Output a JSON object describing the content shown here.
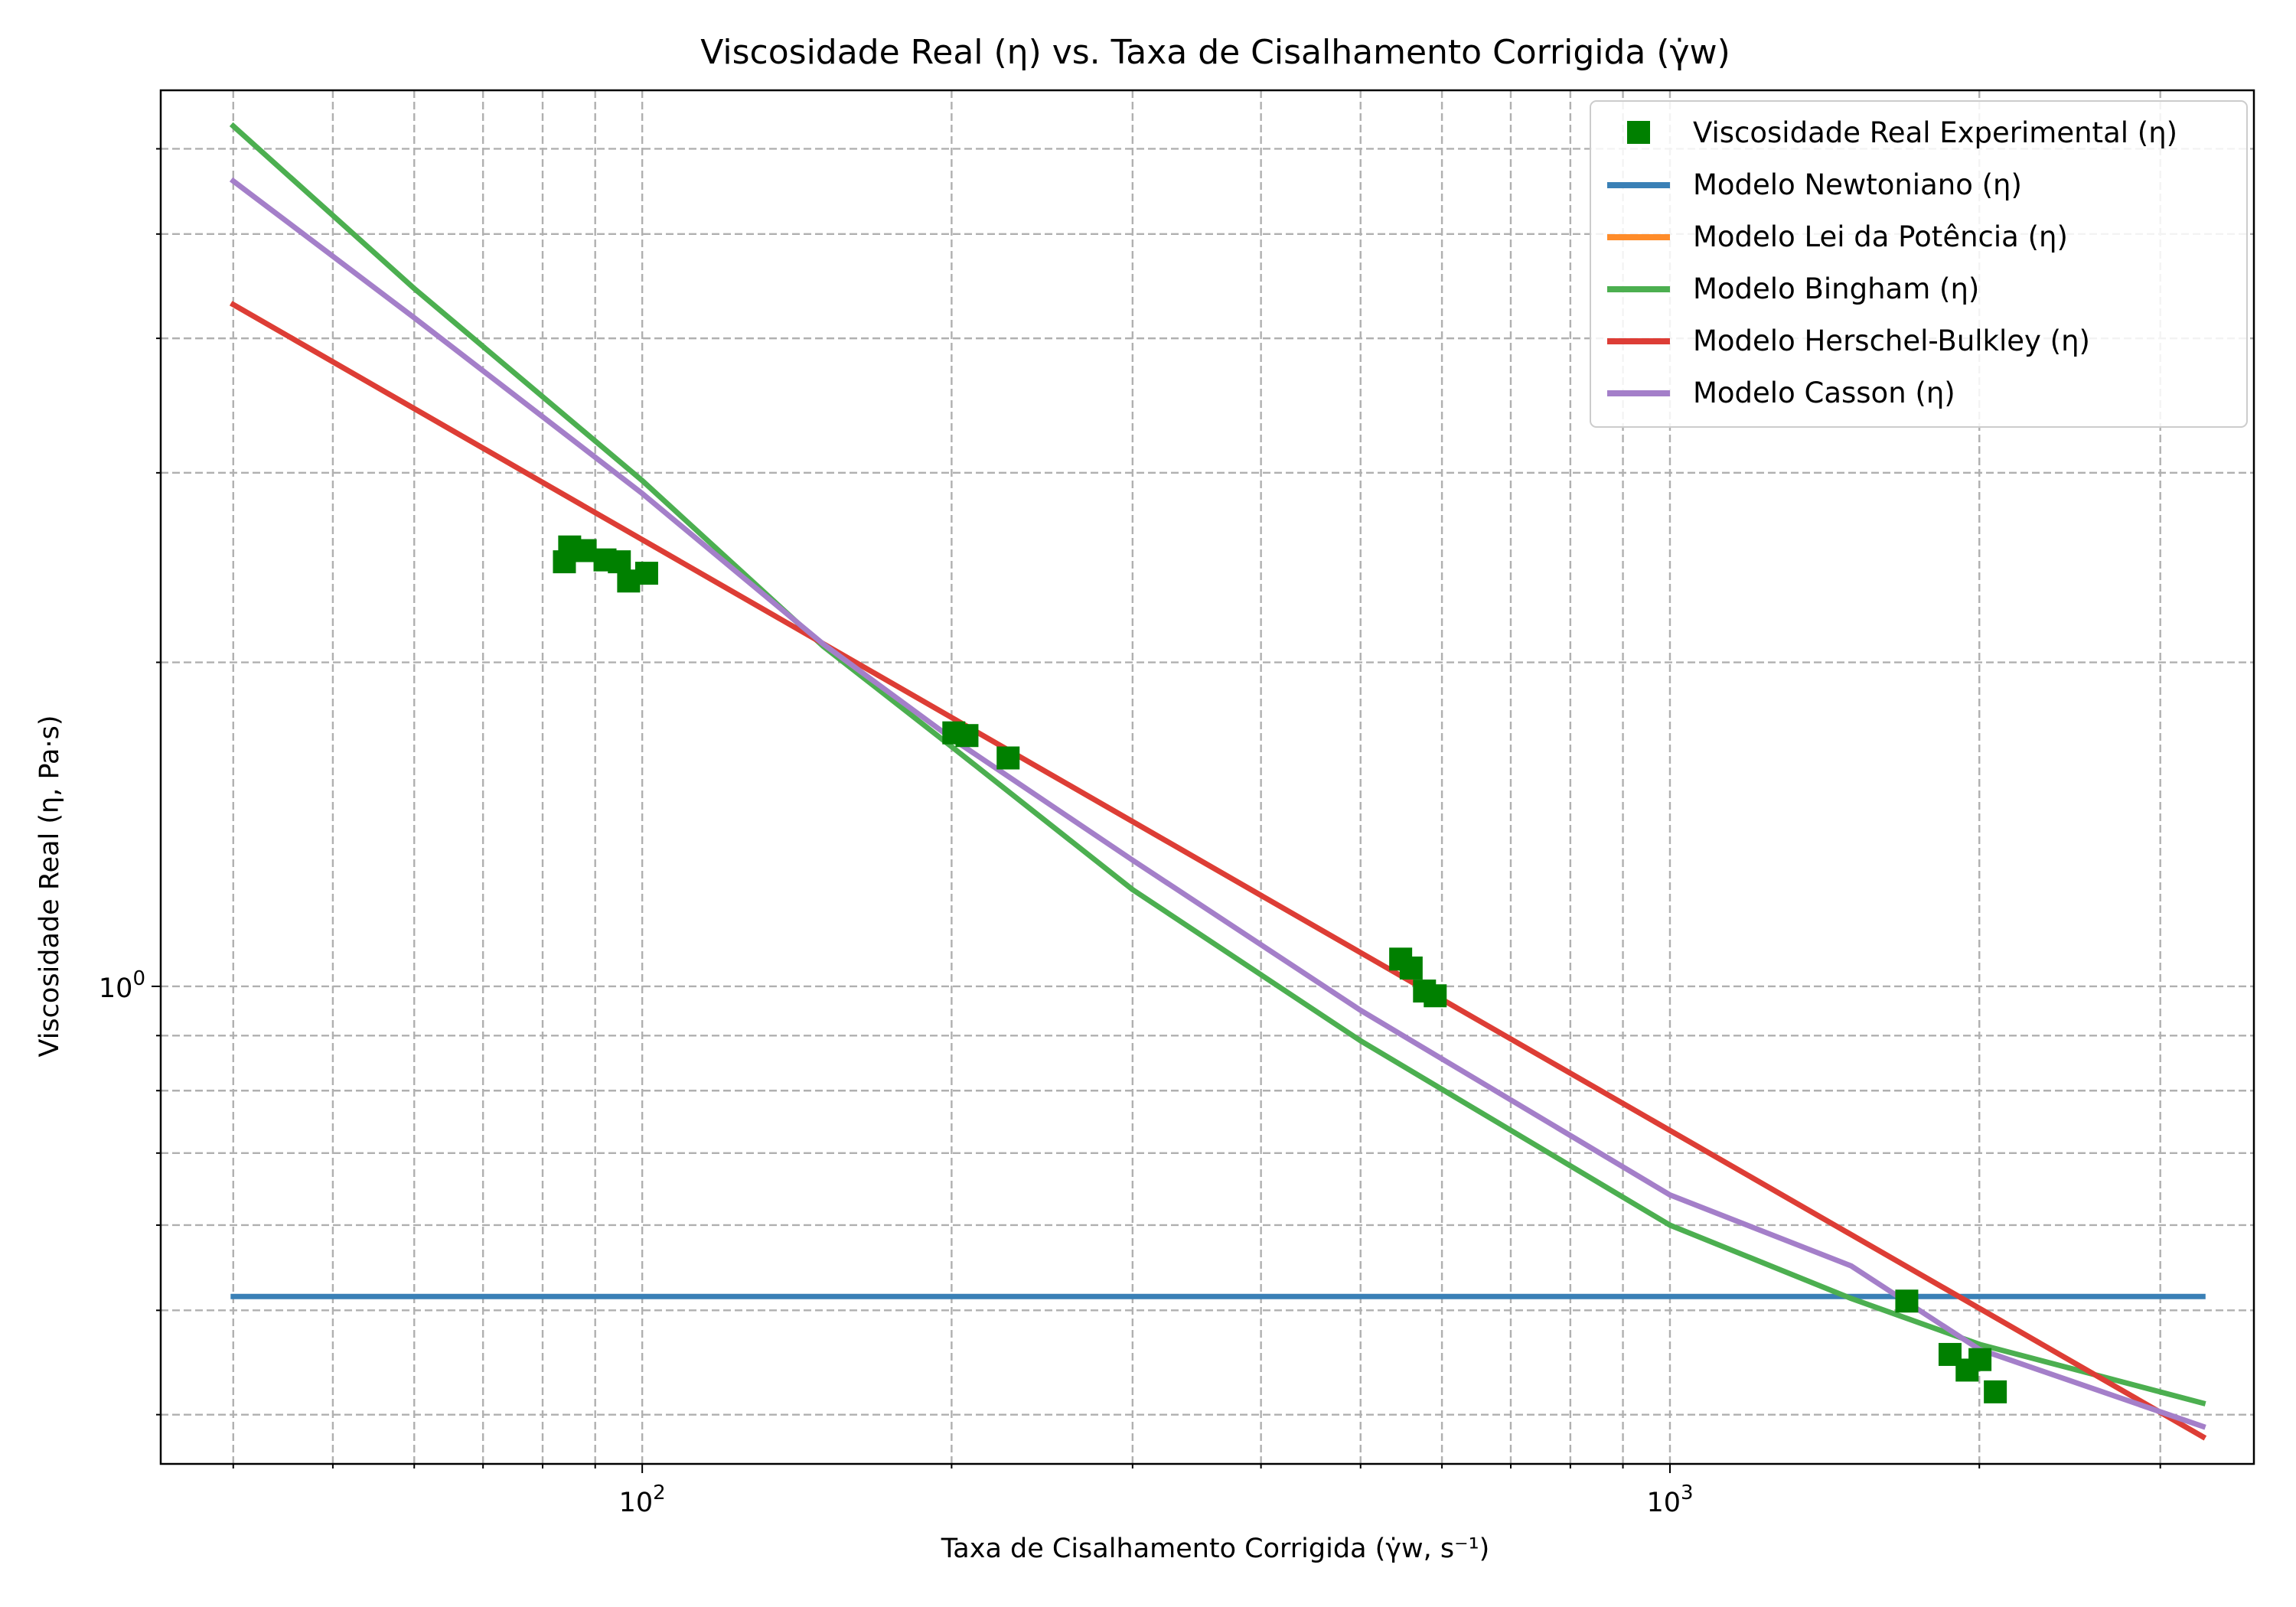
{
  "chart_data": {
    "type": "line",
    "title": "Viscosidade Real (η) vs. Taxa de Cisalhamento Corrigida (γ̇w)",
    "xlabel": "Taxa de Cisalhamento Corrigida (γ̇w, s⁻¹)",
    "ylabel": "Viscosidade Real (η, Pa·s)",
    "xscale": "log",
    "yscale": "log",
    "xlim": [
      34,
      3700
    ],
    "ylim": [
      0.36,
      6.8
    ],
    "grid": true,
    "grid_minor": true,
    "legend_position": "top-right",
    "x_ticks": [
      {
        "value": 100,
        "base": "10",
        "exp": "2"
      },
      {
        "value": 1000,
        "base": "10",
        "exp": "3"
      }
    ],
    "y_ticks": [
      {
        "value": 1,
        "base": "10",
        "exp": "0"
      }
    ],
    "scatter": {
      "name": "Viscosidade Real Experimental (η)",
      "color": "#008000",
      "marker": "square",
      "points": [
        [
          84,
          2.48
        ],
        [
          85,
          2.56
        ],
        [
          88,
          2.54
        ],
        [
          92,
          2.49
        ],
        [
          95,
          2.48
        ],
        [
          97,
          2.38
        ],
        [
          101,
          2.42
        ],
        [
          201,
          1.72
        ],
        [
          207,
          1.71
        ],
        [
          227,
          1.63
        ],
        [
          547,
          1.06
        ],
        [
          560,
          1.04
        ],
        [
          577,
          0.99
        ],
        [
          591,
          0.98
        ],
        [
          1700,
          0.51
        ],
        [
          1873,
          0.455
        ],
        [
          1946,
          0.44
        ],
        [
          2003,
          0.45
        ],
        [
          2073,
          0.42
        ]
      ]
    },
    "series": [
      {
        "name": "Modelo Newtoniano (η)",
        "color": "#3a80b6",
        "x": [
          40,
          3300
        ],
        "y": [
          0.515,
          0.515
        ]
      },
      {
        "name": "Modelo Lei da Potência (η)",
        "color": "#ff8c2a",
        "x": [
          40,
          3300
        ],
        "y": [
          4.3,
          0.3815
        ]
      },
      {
        "name": "Modelo Bingham (η)",
        "color": "#4caf50",
        "x": [
          40,
          60,
          100,
          150,
          200,
          300,
          500,
          1000,
          1500,
          2000,
          3300
        ],
        "y": [
          6.3,
          4.45,
          2.95,
          2.07,
          1.67,
          1.23,
          0.89,
          0.6,
          0.513,
          0.465,
          0.41
        ]
      },
      {
        "name": "Modelo Herschel-Bulkley (η)",
        "color": "#dd3d36",
        "x": [
          40,
          3300
        ],
        "y": [
          4.3,
          0.3815
        ]
      },
      {
        "name": "Modelo Casson (η)",
        "color": "#a47fc9",
        "x": [
          40,
          60,
          100,
          150,
          200,
          300,
          500,
          1000,
          1500,
          2000,
          3300
        ],
        "y": [
          5.6,
          4.18,
          2.87,
          2.08,
          1.7,
          1.31,
          0.95,
          0.64,
          0.55,
          0.46,
          0.39
        ]
      }
    ]
  }
}
